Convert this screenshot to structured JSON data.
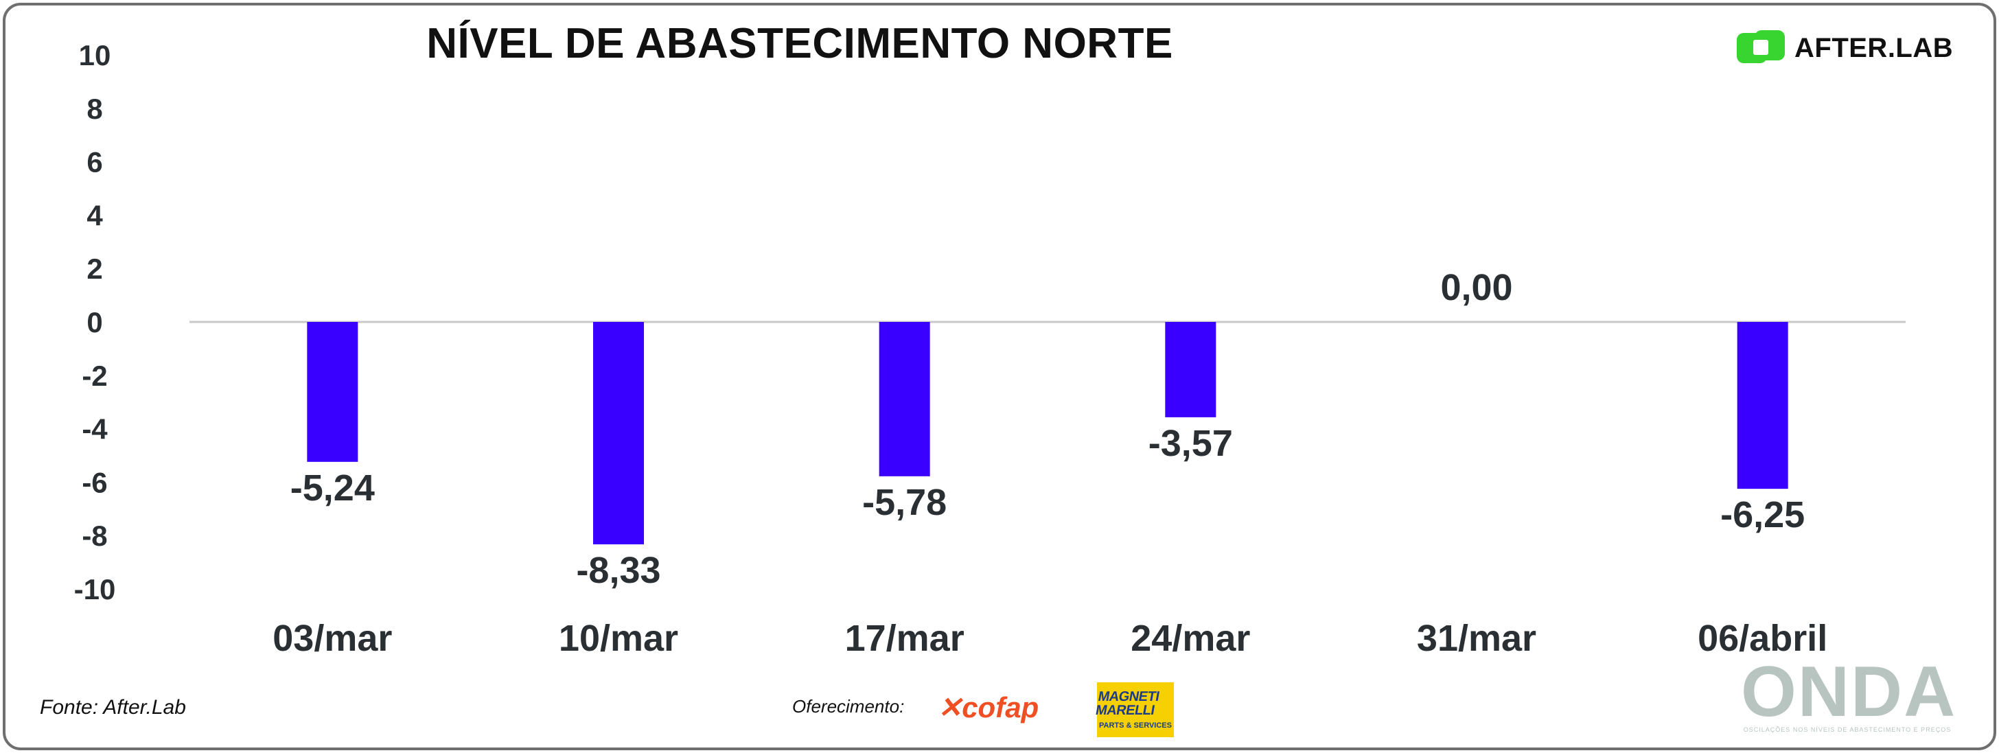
{
  "title": "NÍVEL DE ABASTECIMENTO NORTE",
  "brand": {
    "name": "AFTER.LAB",
    "accent": "#38d430"
  },
  "footer": {
    "source": "Fonte: After.Lab",
    "sponsor_label": "Oferecimento:",
    "sponsor_logo_1": "cofap",
    "sponsor_logo_2_top": "MAGNETI MARELLI",
    "sponsor_logo_2_bottom": "PARTS & SERVICES",
    "publication_logo": "ONDA",
    "publication_tagline": "OSCILAÇÕES NOS NÍVEIS DE ABASTECIMENTO E PREÇOS"
  },
  "colors": {
    "bar": "#3a00ff",
    "frame": "#6f6f6f",
    "zero_line": "#c8c8c8",
    "text": "#2a2f33",
    "cofap": "#f04e23",
    "magneti_bg": "#f6d000"
  },
  "chart_data": {
    "type": "bar",
    "title": "NÍVEL DE ABASTECIMENTO NORTE",
    "xlabel": "",
    "ylabel": "",
    "categories": [
      "03/mar",
      "10/mar",
      "17/mar",
      "24/mar",
      "31/mar",
      "06/abril"
    ],
    "values": [
      -5.24,
      -8.33,
      -5.78,
      -3.57,
      0.0,
      -6.25
    ],
    "data_labels": [
      "-5,24",
      "-8,33",
      "-5,78",
      "-3,57",
      "0,00",
      "-6,25"
    ],
    "ylim": [
      -10,
      10
    ],
    "yticks": [
      "10",
      "8",
      "6",
      "4",
      "2",
      "0",
      "-2",
      "-4",
      "-6",
      "-8",
      "-10"
    ],
    "ytick_values": [
      10,
      8,
      6,
      4,
      2,
      0,
      -2,
      -4,
      -6,
      -8,
      -10
    ],
    "grid": false,
    "legend": "none"
  }
}
